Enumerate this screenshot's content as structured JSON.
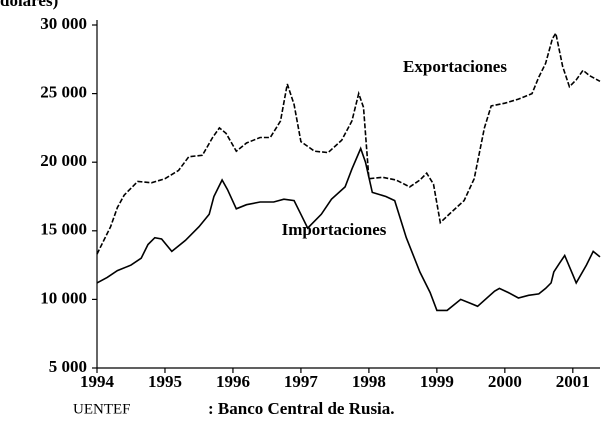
{
  "chart_data": {
    "type": "line",
    "title": "dólares)",
    "source_label": "UENTEF",
    "source": ": Banco Central de Rusia.",
    "series": [
      {
        "name": "Exportaciones",
        "color": "#000000",
        "dash": true,
        "x": [
          1994.0,
          1994.1,
          1994.2,
          1994.3,
          1994.4,
          1994.6,
          1994.8,
          1995.0,
          1995.2,
          1995.35,
          1995.55,
          1995.7,
          1995.8,
          1995.9,
          1996.05,
          1996.2,
          1996.4,
          1996.55,
          1996.7,
          1996.8,
          1996.9,
          1997.0,
          1997.2,
          1997.4,
          1997.6,
          1997.75,
          1997.85,
          1997.92,
          1998.0,
          1998.2,
          1998.4,
          1998.6,
          1998.75,
          1998.85,
          1998.95,
          1999.05,
          1999.2,
          1999.4,
          1999.55,
          1999.7,
          1999.8,
          2000.0,
          2000.2,
          2000.4,
          2000.5,
          2000.6,
          2000.7,
          2000.75,
          2000.85,
          2000.95,
          2001.05,
          2001.15,
          2001.25,
          2001.4
        ],
        "values": [
          13300,
          14300,
          15300,
          16700,
          17600,
          18600,
          18500,
          18800,
          19400,
          20400,
          20500,
          21800,
          22500,
          22100,
          20800,
          21400,
          21800,
          21800,
          23000,
          25700,
          24200,
          21500,
          20800,
          20700,
          21600,
          23000,
          25000,
          24000,
          18800,
          18900,
          18700,
          18200,
          18700,
          19200,
          18400,
          15600,
          16300,
          17200,
          18800,
          22500,
          24100,
          24300,
          24600,
          25000,
          26200,
          27200,
          29000,
          29400,
          27000,
          25500,
          26000,
          26700,
          26300,
          25900
        ]
      },
      {
        "name": "Importaciones",
        "color": "#000000",
        "dash": false,
        "x": [
          1994.0,
          1994.15,
          1994.3,
          1994.5,
          1994.65,
          1994.75,
          1994.85,
          1994.95,
          1995.1,
          1995.3,
          1995.5,
          1995.65,
          1995.72,
          1995.84,
          1995.92,
          1996.05,
          1996.2,
          1996.4,
          1996.6,
          1996.75,
          1996.9,
          1997.0,
          1997.1,
          1997.3,
          1997.45,
          1997.65,
          1997.75,
          1997.88,
          1997.95,
          1998.05,
          1998.25,
          1998.38,
          1998.55,
          1998.75,
          1998.9,
          1999.0,
          1999.15,
          1999.35,
          1999.5,
          1999.6,
          1999.85,
          1999.92,
          2000.05,
          2000.2,
          2000.35,
          2000.5,
          2000.6,
          2000.68,
          2000.72,
          2000.8,
          2000.88,
          2001.0,
          2001.05,
          2001.2,
          2001.3,
          2001.4
        ],
        "values": [
          11200,
          11600,
          12100,
          12500,
          13000,
          14000,
          14500,
          14400,
          13500,
          14300,
          15300,
          16200,
          17500,
          18700,
          18000,
          16600,
          16900,
          17100,
          17100,
          17300,
          17200,
          16200,
          15200,
          16200,
          17300,
          18200,
          19500,
          21000,
          20000,
          17800,
          17500,
          17200,
          14500,
          12000,
          10500,
          9200,
          9200,
          10000,
          9700,
          9500,
          10600,
          10800,
          10500,
          10100,
          10300,
          10400,
          10800,
          11200,
          12000,
          12600,
          13200,
          11800,
          11200,
          12500,
          13500,
          13100
        ]
      }
    ],
    "xlim": [
      1994,
      2001.4
    ],
    "xticks": [
      1994,
      1995,
      1996,
      1997,
      1998,
      1999,
      2000,
      2001
    ],
    "ylim": [
      5000,
      30000
    ],
    "yticks": [
      {
        "value": 5000,
        "label": "5 000"
      },
      {
        "value": 10000,
        "label": "10 000"
      },
      {
        "value": 15000,
        "label": "15 000"
      },
      {
        "value": 20000,
        "label": "20 000"
      },
      {
        "value": 25000,
        "label": "25 000"
      },
      {
        "value": 30000,
        "label": "30 000"
      }
    ],
    "grid": false
  }
}
